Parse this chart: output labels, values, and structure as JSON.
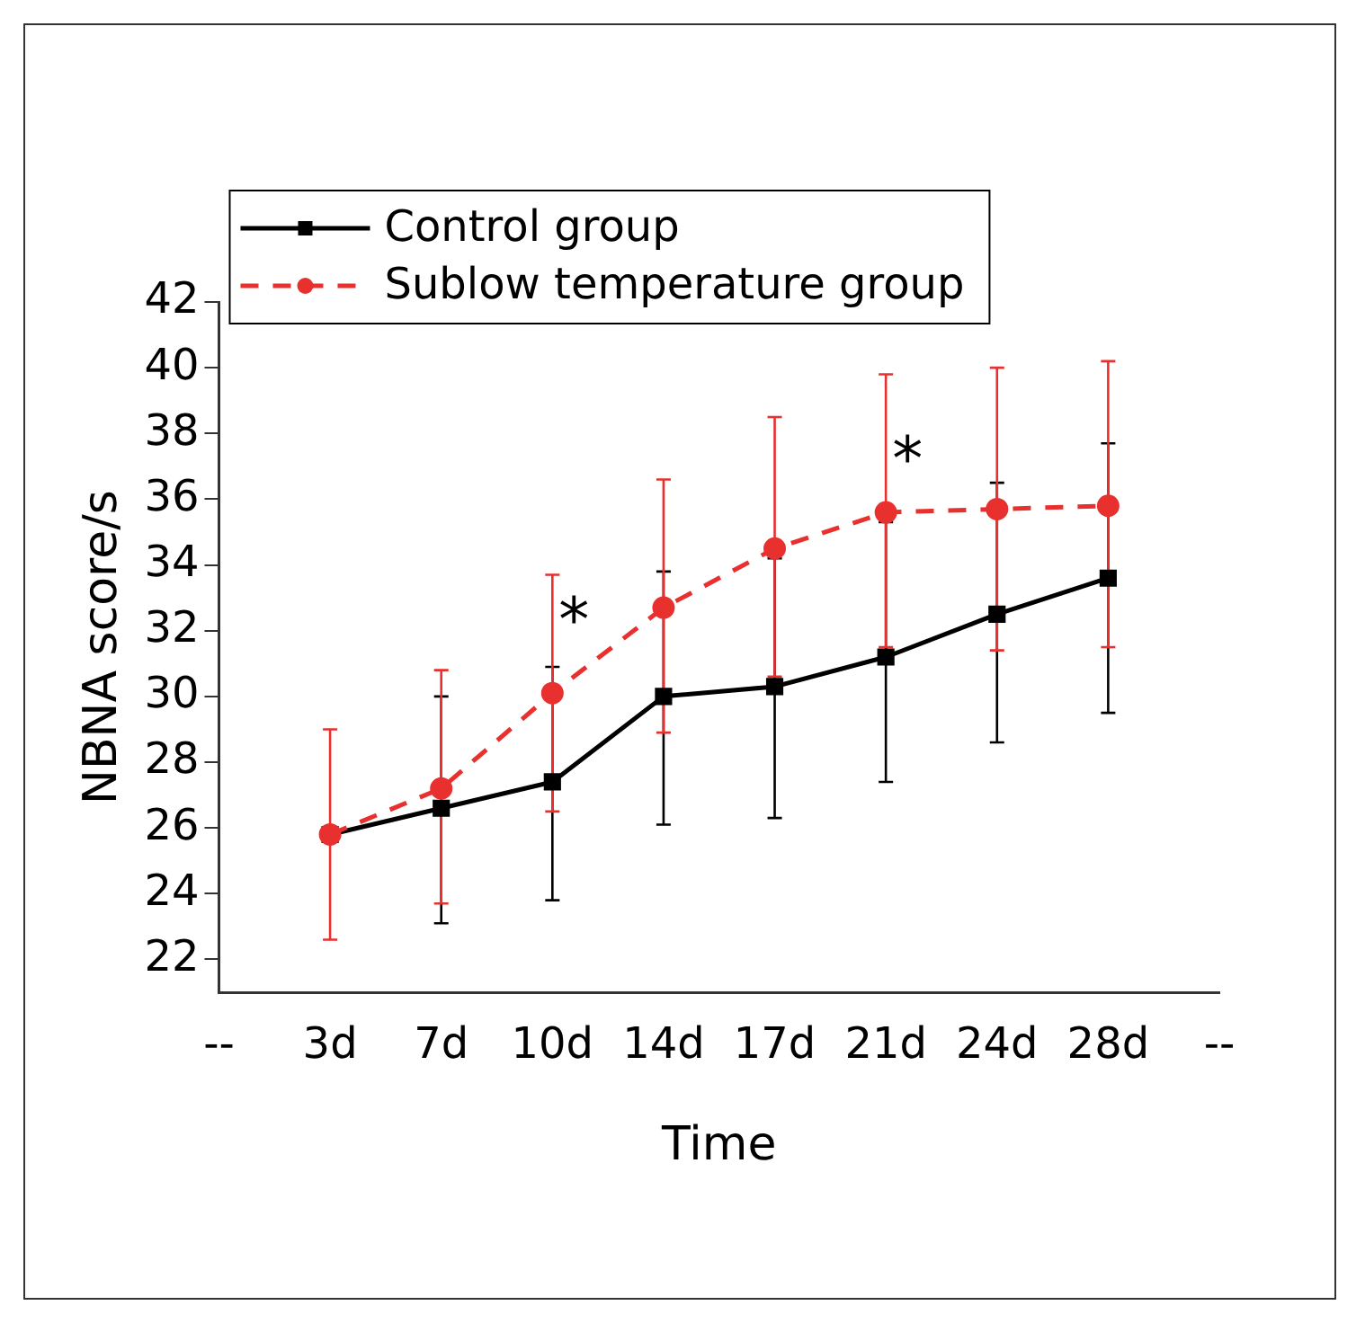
{
  "chart_data": {
    "type": "line",
    "xlabel": "Time",
    "ylabel": "NBNA score/s",
    "categories": [
      "--",
      "3d",
      "7d",
      "10d",
      "14d",
      "17d",
      "21d",
      "24d",
      "28d",
      "--"
    ],
    "series": [
      {
        "name": "Control group",
        "color": "#000000",
        "marker": "square",
        "line_style": "solid",
        "values": [
          null,
          25.8,
          26.6,
          27.4,
          30.0,
          30.3,
          31.2,
          32.5,
          33.6,
          null
        ],
        "errors": [
          null,
          null,
          [
            23.1,
            30.0
          ],
          [
            23.8,
            30.9
          ],
          [
            26.1,
            33.8
          ],
          [
            26.3,
            34.2
          ],
          [
            27.4,
            35.3
          ],
          [
            28.6,
            36.5
          ],
          [
            29.5,
            37.7
          ],
          null
        ]
      },
      {
        "name": "Sublow temperature group",
        "color": "#e8302e",
        "marker": "circle",
        "line_style": "dashed",
        "values": [
          null,
          25.8,
          27.2,
          30.1,
          32.7,
          34.5,
          35.6,
          35.7,
          35.8,
          null
        ],
        "errors": [
          null,
          [
            22.6,
            29.0
          ],
          [
            23.7,
            30.8
          ],
          [
            26.5,
            33.7
          ],
          [
            28.9,
            36.6
          ],
          [
            30.6,
            38.5
          ],
          [
            31.5,
            39.8
          ],
          [
            31.4,
            40.0
          ],
          [
            31.5,
            40.2
          ],
          null
        ]
      }
    ],
    "ylim": [
      21,
      42
    ],
    "yticks": [
      22,
      24,
      26,
      28,
      30,
      32,
      34,
      36,
      38,
      40,
      42
    ],
    "grid": false,
    "legend": "top left",
    "annotations": [
      {
        "text": "*",
        "x": "10d",
        "y": 32.5
      },
      {
        "text": "*",
        "x": "21d",
        "y": 37.4
      }
    ]
  }
}
